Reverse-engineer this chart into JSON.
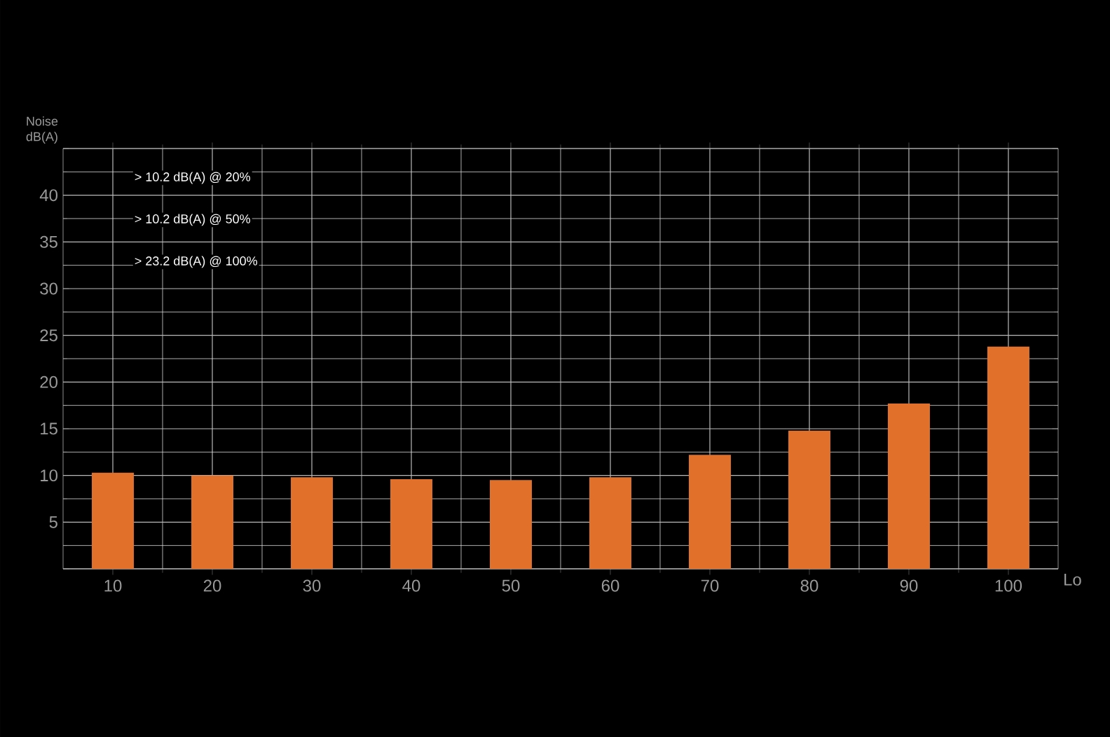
{
  "chart_data": {
    "type": "bar",
    "ylabel": "Noise dB(A)",
    "xlabel": "Lo",
    "categories": [
      "10",
      "20",
      "30",
      "40",
      "50",
      "60",
      "70",
      "80",
      "90",
      "100"
    ],
    "values": [
      10.3,
      10.0,
      9.8,
      9.6,
      9.5,
      9.8,
      12.2,
      14.8,
      17.7,
      23.8
    ],
    "color": "#e0702a",
    "ylim": [
      0,
      45
    ],
    "yticks": [
      {
        "value": 0,
        "label": null
      },
      5,
      10,
      15,
      20,
      25,
      30,
      35,
      40,
      {
        "value": 45,
        "label": null
      }
    ],
    "grid": true,
    "annotations": [
      "> 10.2 dB(A) @ 20%",
      "> 10.2  dB(A) @ 50%",
      "> 23.2  dB(A) @ 100%"
    ]
  }
}
